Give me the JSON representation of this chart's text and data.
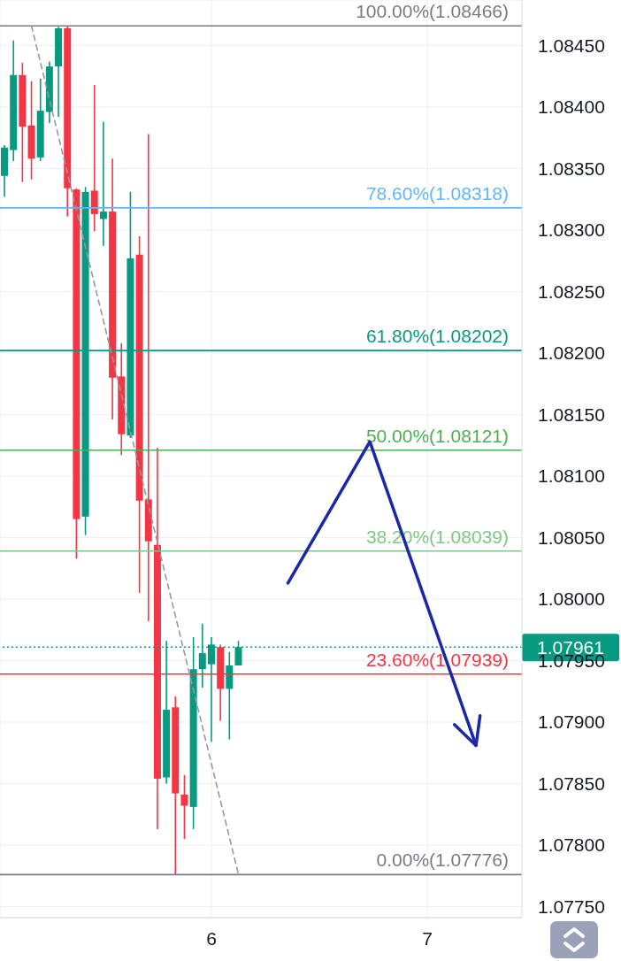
{
  "chart_data": {
    "type": "candlestick",
    "x": [
      5.0417,
      5.0833,
      5.125,
      5.1667,
      5.2083,
      5.25,
      5.2917,
      5.3333,
      5.375,
      5.4167,
      5.4583,
      5.5,
      5.5417,
      5.5833,
      5.625,
      5.6667,
      5.7083,
      5.75,
      5.7917,
      5.8333,
      5.875,
      5.9167,
      5.9583,
      6,
      6.0417,
      6.0833,
      6.125
    ],
    "ohlc": [
      [
        1.08344,
        1.08369,
        1.08327,
        1.08367
      ],
      [
        1.08365,
        1.08454,
        1.08356,
        1.08426
      ],
      [
        1.08426,
        1.08436,
        1.08339,
        1.08384
      ],
      [
        1.08385,
        1.08421,
        1.08341,
        1.08358
      ],
      [
        1.08359,
        1.08423,
        1.08356,
        1.08397
      ],
      [
        1.08396,
        1.08437,
        1.08387,
        1.08433
      ],
      [
        1.08433,
        1.08465,
        1.08392,
        1.08464
      ],
      [
        1.08464,
        1.08466,
        1.08311,
        1.08334
      ],
      [
        1.08333,
        1.08334,
        1.08033,
        1.08065
      ],
      [
        1.08067,
        1.08335,
        1.08052,
        1.08331
      ],
      [
        1.08332,
        1.08418,
        1.08299,
        1.08313
      ],
      [
        1.08309,
        1.08388,
        1.08287,
        1.08315
      ],
      [
        1.08315,
        1.08358,
        1.08146,
        1.0818
      ],
      [
        1.08181,
        1.08208,
        1.08117,
        1.08134
      ],
      [
        1.08133,
        1.08331,
        1.08131,
        1.08277
      ],
      [
        1.0828,
        1.08295,
        1.08005,
        1.0808
      ],
      [
        1.08081,
        1.08378,
        1.07982,
        1.08047
      ],
      [
        1.08044,
        1.08123,
        1.07813,
        1.07854
      ],
      [
        1.07855,
        1.07966,
        1.0785,
        1.0791
      ],
      [
        1.07912,
        1.07921,
        1.07776,
        1.07842
      ],
      [
        1.07841,
        1.07857,
        1.07805,
        1.07832
      ],
      [
        1.07831,
        1.07969,
        1.07813,
        1.07943
      ],
      [
        1.07943,
        1.0798,
        1.07928,
        1.07956
      ],
      [
        1.07947,
        1.07969,
        1.07884,
        1.07963
      ],
      [
        1.07961,
        1.07963,
        1.07901,
        1.07927
      ],
      [
        1.07927,
        1.07957,
        1.07886,
        1.07946
      ],
      [
        1.07946,
        1.07966,
        1.07946,
        1.07961
      ]
    ],
    "colors": [
      "#089981",
      "#089981",
      "#f23645",
      "#f23645",
      "#089981",
      "#089981",
      "#089981",
      "#f23645",
      "#f23645",
      "#089981",
      "#f23645",
      "#089981",
      "#f23645",
      "#f23645",
      "#089981",
      "#f23645",
      "#f23645",
      "#f23645",
      "#089981",
      "#f23645",
      "#f23645",
      "#089981",
      "#089981",
      "#089981",
      "#f23645",
      "#089981",
      "#089981"
    ],
    "series": [
      {
        "type": "line",
        "x": [
          5.1667,
          6.125
        ],
        "values": [
          1.08466,
          1.07776
        ],
        "color": "#9598a1",
        "line_style": "dashed"
      },
      {
        "type": "line",
        "x": [
          6.3542,
          6.7333,
          7.225
        ],
        "values": [
          1.08013,
          1.08128,
          1.07881
        ],
        "color": "#1a27a8"
      }
    ],
    "xlim": [
      5.0208,
      7.4375
    ],
    "xticks": [
      6,
      7
    ],
    "ylim": [
      1.07741,
      1.08487
    ],
    "yticks": [
      {
        "value": 1.0775,
        "label": "1.07750"
      },
      {
        "value": 1.078,
        "label": "1.07800"
      },
      {
        "value": 1.0785,
        "label": "1.07850"
      },
      {
        "value": 1.079,
        "label": "1.07900"
      },
      {
        "value": 1.0795,
        "label": "1.07950"
      },
      {
        "value": 1.08,
        "label": "1.08000"
      },
      {
        "value": 1.0805,
        "label": "1.08050"
      },
      {
        "value": 1.081,
        "label": "1.08100"
      },
      {
        "value": 1.0815,
        "label": "1.08150"
      },
      {
        "value": 1.082,
        "label": "1.08200"
      },
      {
        "value": 1.0825,
        "label": "1.08250"
      },
      {
        "value": 1.083,
        "label": "1.08300"
      },
      {
        "value": 1.0835,
        "label": "1.08350"
      },
      {
        "value": 1.084,
        "label": "1.08400"
      },
      {
        "value": 1.0845,
        "label": "1.08450"
      }
    ],
    "grid": true,
    "ref_lines": [
      {
        "axis": "y",
        "value": 1.08466,
        "label": "100.00%(1.08466)",
        "color": "#787b86"
      },
      {
        "axis": "y",
        "value": 1.08318,
        "label": "78.60%(1.08318)",
        "color": "#64b5f6"
      },
      {
        "axis": "y",
        "value": 1.08202,
        "label": "61.80%(1.08202)",
        "color": "#089981"
      },
      {
        "axis": "y",
        "value": 1.08121,
        "label": "50.00%(1.08121)",
        "color": "#4caf50"
      },
      {
        "axis": "y",
        "value": 1.08039,
        "label": "38.20%(1.08039)",
        "color": "#81c784"
      },
      {
        "axis": "y",
        "value": 1.07939,
        "label": "23.60%(1.07939)",
        "color": "#f23645"
      },
      {
        "axis": "y",
        "value": 1.07776,
        "label": "0.00%(1.07776)",
        "color": "#787b86"
      },
      {
        "axis": "y",
        "value": 1.07961,
        "label": "1.07961",
        "color": "#089981",
        "line_style": "dotted"
      }
    ]
  }
}
